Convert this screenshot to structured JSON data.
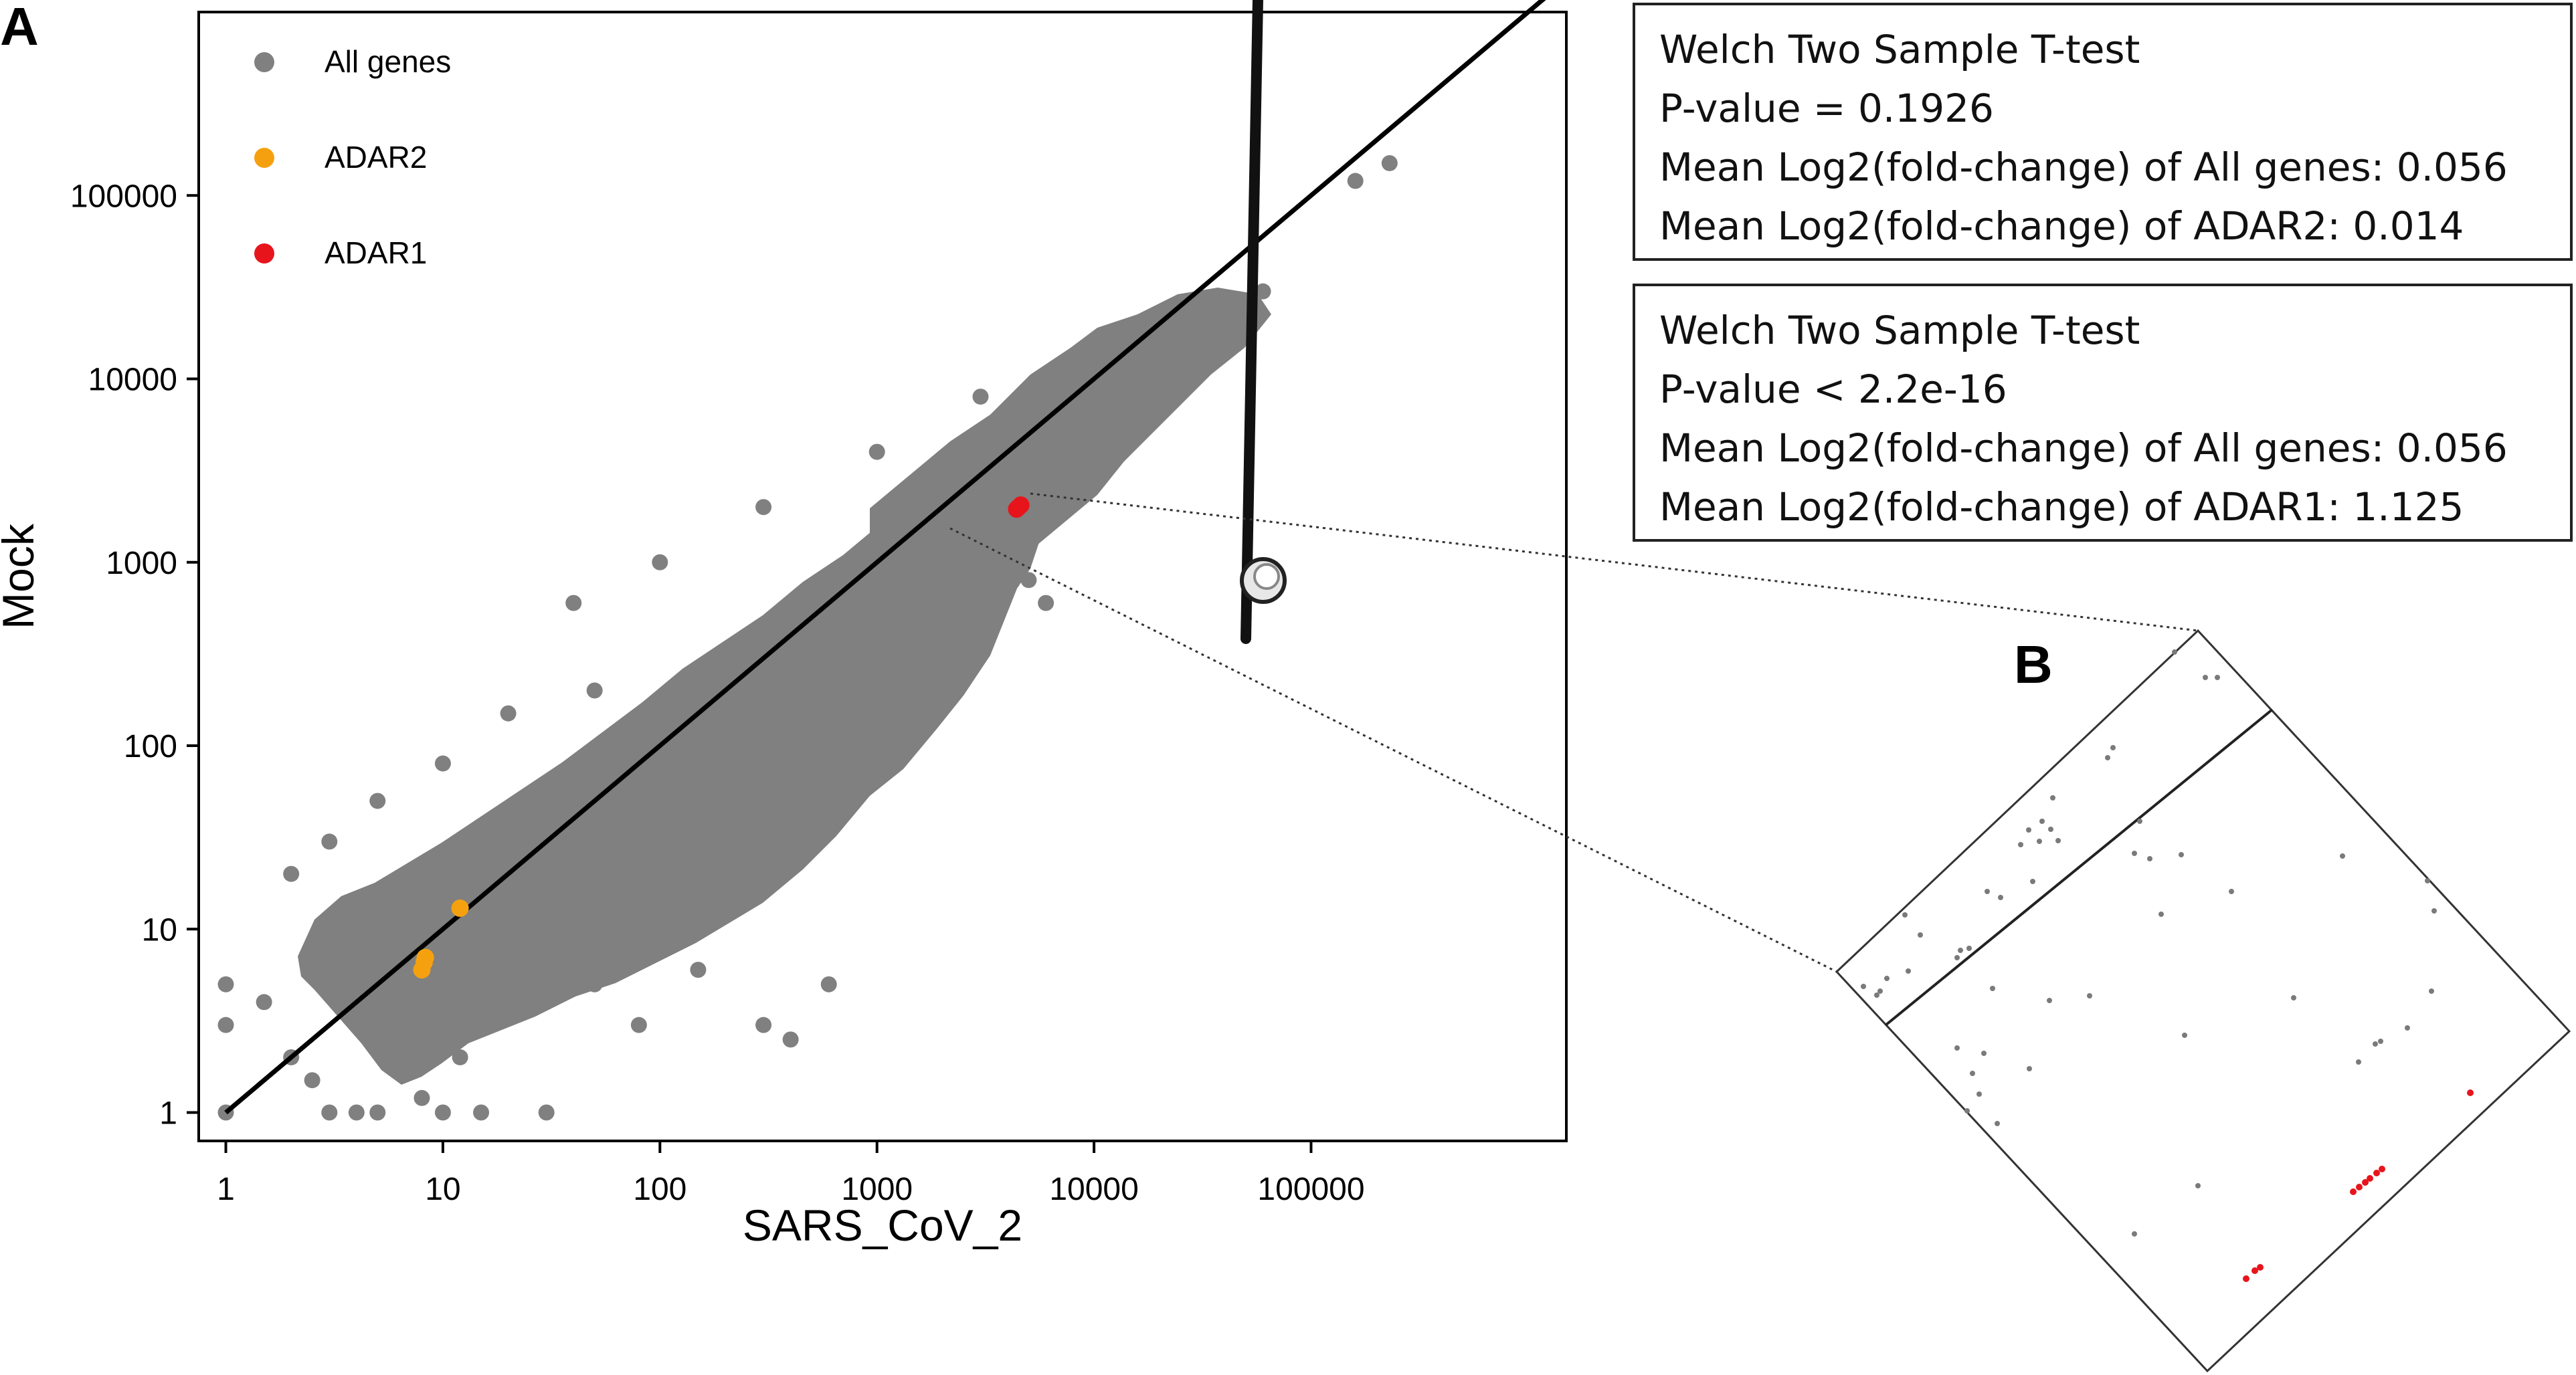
{
  "panel_labels": {
    "a": "A",
    "b": "B"
  },
  "stat_boxes": [
    {
      "test": "Welch Two Sample T-test",
      "pvalue": "P-value = 0.1926",
      "mean_all": "Mean Log2(fold-change) of All genes:  0.056",
      "mean_gene": "Mean Log2(fold-change) of ADAR2: 0.014"
    },
    {
      "test": "Welch Two Sample T-test",
      "pvalue": "P-value < 2.2e-16",
      "mean_all": "Mean Log2(fold-change) of All genes:  0.056",
      "mean_gene": "Mean Log2(fold-change) of ADAR1: 1.125"
    }
  ],
  "colors": {
    "all_genes": "#808080",
    "adar2": "#f5a10f",
    "adar1": "#e8141c",
    "axis": "#000000"
  },
  "icons": {
    "zoom": "magnifier-icon"
  },
  "chart_data": {
    "type": "scatter",
    "title": "",
    "xlabel": "SARS_CoV_2",
    "ylabel": "Mock",
    "xscale": "log",
    "yscale": "log",
    "xlim": [
      0.75,
      1500000
    ],
    "ylim": [
      0.7,
      1000000
    ],
    "xticks": [
      1,
      10,
      100,
      1000,
      10000,
      100000
    ],
    "xtick_labels": [
      "1",
      "10",
      "100",
      "1000",
      "10000",
      "100000"
    ],
    "yticks": [
      1,
      10,
      100,
      1000,
      10000,
      100000
    ],
    "ytick_labels": [
      "1",
      "10",
      "100",
      "1000",
      "10000",
      "100000"
    ],
    "grid": false,
    "legend_position": "top-left",
    "reference_line": {
      "from": [
        1,
        1
      ],
      "to": [
        1200000,
        1200000
      ]
    },
    "series": [
      {
        "name": "All genes",
        "color": "#808080",
        "points": [
          [
            1,
            1
          ],
          [
            1,
            5
          ],
          [
            1,
            3
          ],
          [
            1.5,
            4
          ],
          [
            2,
            2
          ],
          [
            2,
            20
          ],
          [
            2.5,
            1.5
          ],
          [
            3,
            1
          ],
          [
            3,
            30
          ],
          [
            4,
            1
          ],
          [
            5,
            1
          ],
          [
            5,
            50
          ],
          [
            6,
            2
          ],
          [
            8,
            1.2
          ],
          [
            10,
            1
          ],
          [
            10,
            80
          ],
          [
            12,
            2
          ],
          [
            15,
            1
          ],
          [
            20,
            5
          ],
          [
            20,
            150
          ],
          [
            30,
            1
          ],
          [
            30,
            10
          ],
          [
            40,
            600
          ],
          [
            50,
            5
          ],
          [
            50,
            200
          ],
          [
            80,
            3
          ],
          [
            100,
            20
          ],
          [
            100,
            1000
          ],
          [
            150,
            6
          ],
          [
            200,
            50
          ],
          [
            300,
            3
          ],
          [
            300,
            2000
          ],
          [
            400,
            2.5
          ],
          [
            500,
            100
          ],
          [
            600,
            5
          ],
          [
            1000,
            200
          ],
          [
            1000,
            4000
          ],
          [
            2000,
            800
          ],
          [
            3000,
            500
          ],
          [
            3000,
            8000
          ],
          [
            4000,
            1500
          ],
          [
            5000,
            800
          ],
          [
            6000,
            600
          ],
          [
            8000,
            3000
          ],
          [
            10000,
            15000
          ],
          [
            12000,
            10000
          ],
          [
            20000,
            20000
          ],
          [
            25000,
            25000
          ],
          [
            60000,
            30000
          ],
          [
            160000,
            120000
          ],
          [
            230000,
            150000
          ]
        ]
      },
      {
        "name": "ADAR2",
        "color": "#f5a10f",
        "points": [
          [
            8,
            6
          ],
          [
            8.3,
            7
          ],
          [
            8.2,
            6.6
          ],
          [
            12,
            13
          ]
        ]
      },
      {
        "name": "ADAR1",
        "color": "#e8141c",
        "points": [
          [
            4400,
            1950
          ],
          [
            4600,
            2050
          ],
          [
            4500,
            2000
          ]
        ]
      }
    ],
    "zoom_panel_label": "B"
  }
}
